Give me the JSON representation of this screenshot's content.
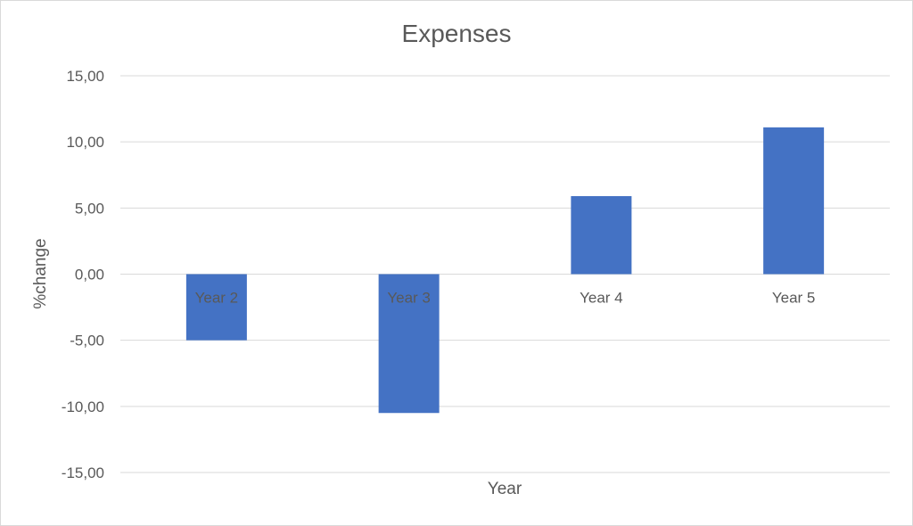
{
  "chart_data": {
    "type": "bar",
    "title": "Expenses",
    "xlabel": "Year",
    "ylabel": "%change",
    "categories": [
      "Year 2",
      "Year 3",
      "Year 4",
      "Year 5"
    ],
    "values": [
      -5.0,
      -10.5,
      5.9,
      11.1
    ],
    "ylim": [
      -15,
      15
    ],
    "yticks": [
      "15,00",
      "10,00",
      "5,00",
      "0,00",
      "-5,00",
      "-10,00",
      "-15,00"
    ],
    "ytick_values": [
      15,
      10,
      5,
      0,
      -5,
      -10,
      -15
    ],
    "grid": true,
    "legend": "none",
    "bar_color": "#4472C4"
  }
}
